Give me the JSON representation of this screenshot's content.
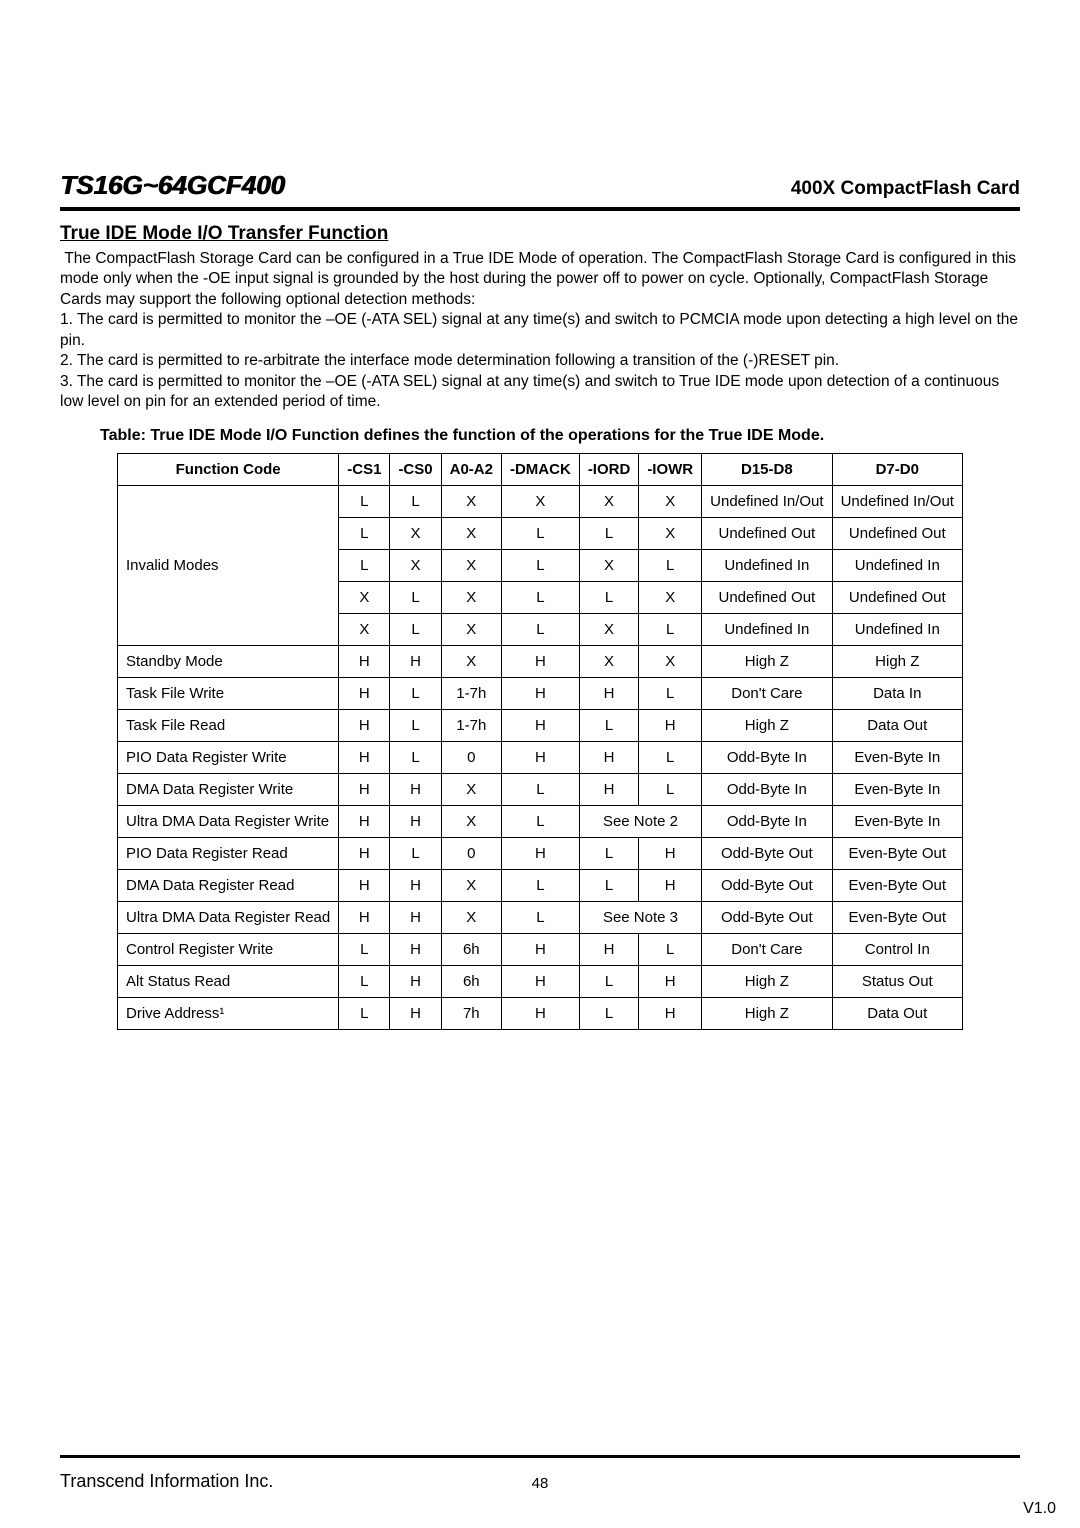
{
  "header": {
    "product": "TS16G~64GCF400",
    "subtitle": "400X CompactFlash Card"
  },
  "section": {
    "title": "True IDE Mode I/O Transfer Function",
    "intro": " The CompactFlash Storage Card can be configured in a True IDE Mode of operation. The CompactFlash Storage Card is configured in this mode only when the -OE input signal is grounded by the host during the power off to power on cycle. Optionally, CompactFlash Storage Cards may support the following optional detection methods:\n1. The card is permitted to monitor the –OE (-ATA SEL) signal at any time(s) and switch to PCMCIA mode upon detecting a high level on the pin.\n2. The card is permitted to re-arbitrate the interface mode determination following a transition of the (-)RESET pin.\n3. The card is permitted to monitor the –OE (-ATA SEL) signal at any time(s) and switch to True IDE mode upon detection of a continuous low level on pin for an extended period of time."
  },
  "table": {
    "caption": "Table: True IDE Mode I/O Function defines the function of the operations for the True IDE Mode.",
    "headers": [
      "Function Code",
      "-CS1",
      "-CS0",
      "A0-A2",
      "-DMACK",
      "-IORD",
      "-IOWR",
      "D15-D8",
      "D7-D0"
    ],
    "rows": [
      {
        "fn": "Invalid Modes",
        "fn_rowspan": 5,
        "cs1": "L",
        "cs0": "L",
        "a0": "X",
        "dm": "X",
        "iord": "X",
        "iowr": "X",
        "d15": "Undefined In/Out",
        "d7": "Undefined In/Out"
      },
      {
        "cs1": "L",
        "cs0": "X",
        "a0": "X",
        "dm": "L",
        "iord": "L",
        "iowr": "X",
        "d15": "Undefined Out",
        "d7": "Undefined Out"
      },
      {
        "cs1": "L",
        "cs0": "X",
        "a0": "X",
        "dm": "L",
        "iord": "X",
        "iowr": "L",
        "d15": "Undefined In",
        "d7": "Undefined In"
      },
      {
        "cs1": "X",
        "cs0": "L",
        "a0": "X",
        "dm": "L",
        "iord": "L",
        "iowr": "X",
        "d15": "Undefined Out",
        "d7": "Undefined Out"
      },
      {
        "cs1": "X",
        "cs0": "L",
        "a0": "X",
        "dm": "L",
        "iord": "X",
        "iowr": "L",
        "d15": "Undefined In",
        "d7": "Undefined In"
      },
      {
        "fn": "Standby Mode",
        "cs1": "H",
        "cs0": "H",
        "a0": "X",
        "dm": "H",
        "iord": "X",
        "iowr": "X",
        "d15": "High Z",
        "d7": "High Z"
      },
      {
        "fn": "Task File Write",
        "cs1": "H",
        "cs0": "L",
        "a0": "1-7h",
        "dm": "H",
        "iord": "H",
        "iowr": "L",
        "d15": "Don't Care",
        "d7": "Data In"
      },
      {
        "fn": "Task File Read",
        "cs1": "H",
        "cs0": "L",
        "a0": "1-7h",
        "dm": "H",
        "iord": "L",
        "iowr": "H",
        "d15": "High Z",
        "d7": "Data Out"
      },
      {
        "fn": "PIO Data Register Write",
        "cs1": "H",
        "cs0": "L",
        "a0": "0",
        "dm": "H",
        "iord": "H",
        "iowr": "L",
        "d15": "Odd-Byte In",
        "d7": "Even-Byte In"
      },
      {
        "fn": "DMA Data Register Write",
        "cs1": "H",
        "cs0": "H",
        "a0": "X",
        "dm": "L",
        "iord": "H",
        "iowr": "L",
        "d15": "Odd-Byte In",
        "d7": "Even-Byte In"
      },
      {
        "fn": "Ultra DMA Data Register Write",
        "cs1": "H",
        "cs0": "H",
        "a0": "X",
        "dm": "L",
        "iord_span": "See Note 2",
        "d15": "Odd-Byte In",
        "d7": "Even-Byte In"
      },
      {
        "fn": "PIO Data Register Read",
        "cs1": "H",
        "cs0": "L",
        "a0": "0",
        "dm": "H",
        "iord": "L",
        "iowr": "H",
        "d15": "Odd-Byte Out",
        "d7": "Even-Byte Out"
      },
      {
        "fn": "DMA Data Register Read",
        "cs1": "H",
        "cs0": "H",
        "a0": "X",
        "dm": "L",
        "iord": "L",
        "iowr": "H",
        "d15": "Odd-Byte Out",
        "d7": "Even-Byte Out"
      },
      {
        "fn": "Ultra DMA Data Register Read",
        "cs1": "H",
        "cs0": "H",
        "a0": "X",
        "dm": "L",
        "iord_span": "See Note 3",
        "d15": "Odd-Byte Out",
        "d7": "Even-Byte Out"
      },
      {
        "fn": "Control Register Write",
        "cs1": "L",
        "cs0": "H",
        "a0": "6h",
        "dm": "H",
        "iord": "H",
        "iowr": "L",
        "d15": "Don't Care",
        "d7": "Control In"
      },
      {
        "fn": "Alt Status Read",
        "cs1": "L",
        "cs0": "H",
        "a0": "6h",
        "dm": "H",
        "iord": "L",
        "iowr": "H",
        "d15": "High Z",
        "d7": "Status Out"
      },
      {
        "fn": "Drive Address¹",
        "cs1": "L",
        "cs0": "H",
        "a0": "7h",
        "dm": "H",
        "iord": "L",
        "iowr": "H",
        "d15": "High Z",
        "d7": "Data Out"
      }
    ]
  },
  "footer": {
    "company": "Transcend Information Inc.",
    "page": "48",
    "version": "V1.0"
  }
}
